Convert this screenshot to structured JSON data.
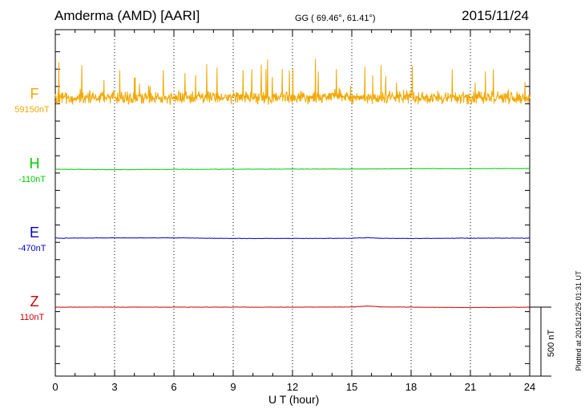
{
  "header": {
    "station": "Amderma (AMD)  [AARI]",
    "coords": "GG ( 69.46°,  61.41°)",
    "date": "2015/11/24"
  },
  "plotted_note": "Plotted at 2015/12/25 01:31  UT",
  "chart_data": {
    "type": "line",
    "xlabel": "U T (hour)",
    "xlim": [
      0,
      24
    ],
    "xticks": [
      0,
      3,
      6,
      9,
      12,
      15,
      18,
      21,
      24
    ],
    "xtick_labels": [
      "0",
      "3",
      "6",
      "9",
      "12",
      "15",
      "18",
      "21",
      "24"
    ],
    "grid": true,
    "scale_bar": {
      "value": 500,
      "label": "500 nT"
    },
    "series": [
      {
        "name": "F",
        "baseline_label": "59150nT",
        "color": "#f2a800",
        "baseline_nT": 59150,
        "noise_nT": 45,
        "points": [
          [
            0,
            59150
          ],
          [
            3,
            59150
          ],
          [
            6,
            59150
          ],
          [
            9,
            59150
          ],
          [
            12,
            59150
          ],
          [
            15,
            59150
          ],
          [
            18,
            59150
          ],
          [
            21,
            59150
          ],
          [
            24,
            59150
          ]
        ]
      },
      {
        "name": "H",
        "baseline_label": "-110nT",
        "color": "#00cc00",
        "baseline_nT": -110,
        "noise_nT": 3,
        "points": [
          [
            0,
            -110
          ],
          [
            3,
            -113
          ],
          [
            6,
            -111
          ],
          [
            9,
            -110
          ],
          [
            12,
            -109
          ],
          [
            15,
            -109
          ],
          [
            18,
            -106
          ],
          [
            21,
            -106
          ],
          [
            24,
            -105
          ]
        ]
      },
      {
        "name": "E",
        "baseline_label": "-470nT",
        "color": "#0000cc",
        "baseline_nT": -470,
        "noise_nT": 3,
        "points": [
          [
            0,
            -470
          ],
          [
            3,
            -468
          ],
          [
            6,
            -468
          ],
          [
            9,
            -472
          ],
          [
            12,
            -472
          ],
          [
            15,
            -471
          ],
          [
            15.8,
            -466
          ],
          [
            16.5,
            -471
          ],
          [
            18,
            -472
          ],
          [
            21,
            -470
          ],
          [
            24,
            -470
          ]
        ]
      },
      {
        "name": "Z",
        "baseline_label": "110nT",
        "color": "#cc0000",
        "baseline_nT": 110,
        "noise_nT": 2,
        "points": [
          [
            0,
            110
          ],
          [
            3,
            110
          ],
          [
            6,
            110
          ],
          [
            9,
            110
          ],
          [
            12,
            110
          ],
          [
            15,
            111
          ],
          [
            15.8,
            118
          ],
          [
            16.6,
            111
          ],
          [
            18,
            110
          ],
          [
            21,
            107
          ],
          [
            24,
            110
          ]
        ]
      }
    ]
  }
}
